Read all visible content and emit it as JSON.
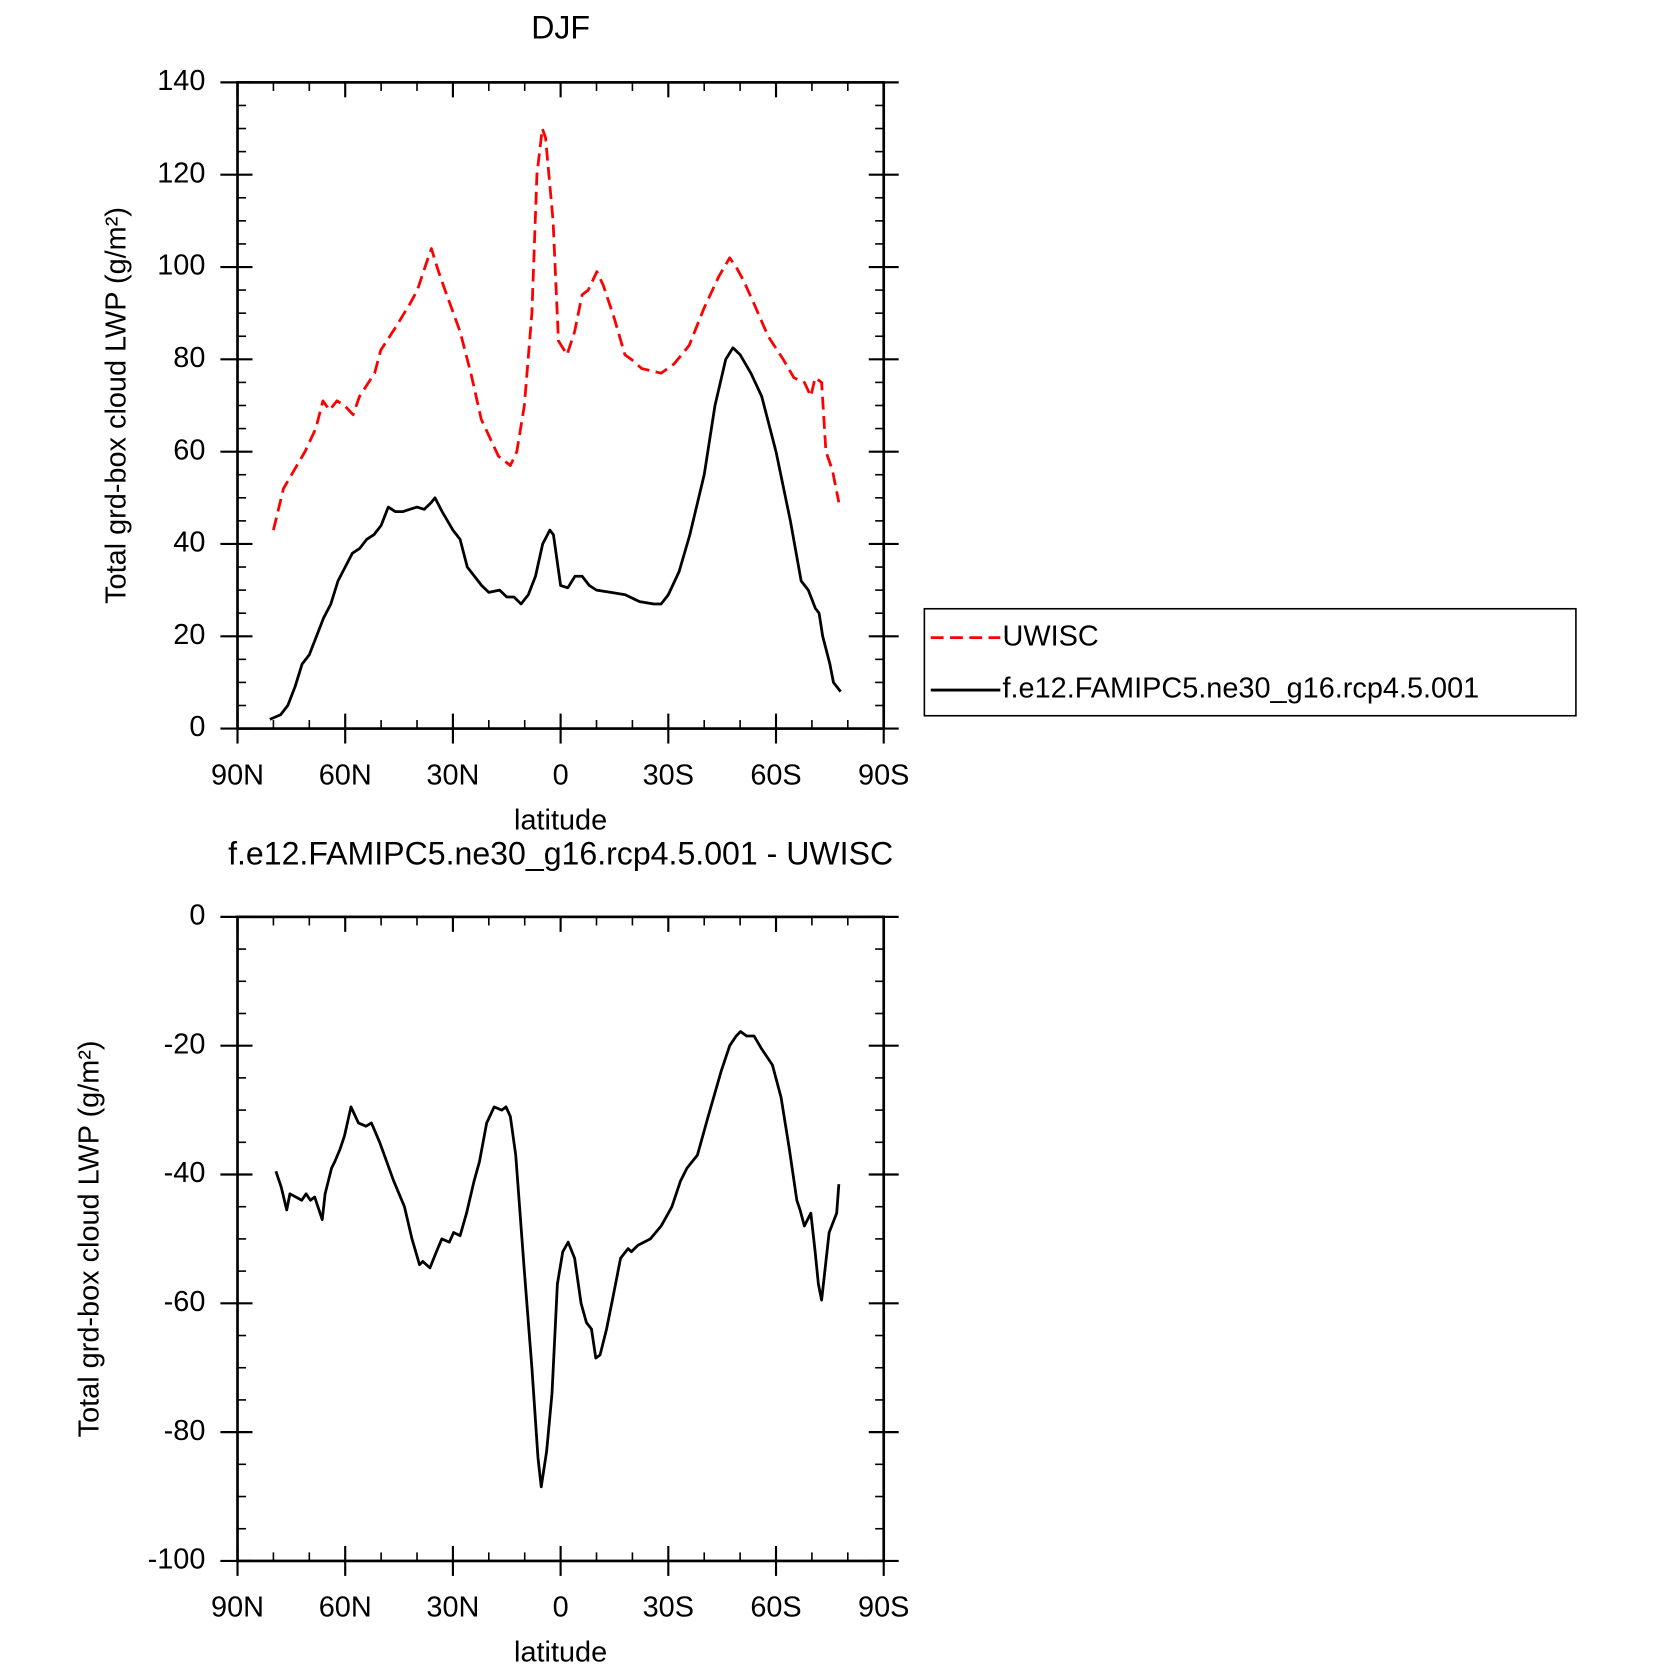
{
  "chart_data": [
    {
      "type": "line",
      "title": "DJF",
      "xlabel": "latitude",
      "ylabel": "Total grd-box cloud LWP (g/m²)",
      "xlim": [
        90,
        -90
      ],
      "xticks": [
        {
          "value": 90,
          "label": "90N"
        },
        {
          "value": 60,
          "label": "60N"
        },
        {
          "value": 30,
          "label": "30N"
        },
        0,
        {
          "value": -30,
          "label": "30S"
        },
        {
          "value": -60,
          "label": "60S"
        },
        {
          "value": -90,
          "label": "90S"
        }
      ],
      "xminorticks": [
        80,
        70,
        50,
        40,
        20,
        10,
        -10,
        -20,
        -40,
        -50,
        -70,
        -80
      ],
      "ylim": [
        0,
        140
      ],
      "yticks": [
        0,
        20,
        40,
        60,
        80,
        100,
        120,
        140
      ],
      "yminorticks": [
        5,
        10,
        15,
        25,
        30,
        35,
        45,
        50,
        55,
        65,
        70,
        75,
        85,
        90,
        95,
        105,
        110,
        115,
        125,
        130,
        135
      ],
      "legend": "right",
      "series": [
        {
          "name": "UWISC",
          "color": "#ff0000",
          "line_style": "dashed",
          "x": [
            80,
            77.2,
            74.2,
            71.2,
            68.2,
            66.2,
            64.4,
            62.3,
            60.2,
            57.8,
            56,
            51.8,
            50.1,
            45.9,
            42,
            39.9,
            36.9,
            36,
            34,
            32.2,
            28,
            25,
            22.1,
            19.1,
            17.3,
            14,
            12.2,
            10.1,
            8,
            6.6,
            5.1,
            4.2,
            2.1,
            0.6,
            -1.8,
            -3.9,
            -6,
            -7.7,
            -10.1,
            -11.9,
            -14.9,
            -17.9,
            -19.7,
            -22.6,
            -28,
            -31.6,
            -35.8,
            -39.9,
            -44.1,
            -47.1,
            -48.9,
            -51,
            -53.9,
            -57.8,
            -62,
            -65,
            -67.9,
            -69.7,
            -70.9,
            -72.7,
            -73.9,
            -75.7,
            -77.5
          ],
          "values": [
            43,
            52,
            56,
            60,
            65,
            71,
            69,
            71,
            70,
            68,
            72,
            77,
            82,
            87,
            92,
            95,
            102,
            104,
            99,
            95,
            86,
            77,
            67,
            62,
            59,
            57,
            60,
            70,
            90,
            120,
            130,
            128,
            110,
            84,
            81,
            86,
            94,
            95,
            99,
            96,
            89,
            81,
            80,
            78,
            77,
            79,
            83,
            91,
            98,
            102,
            100,
            97,
            92,
            85,
            80,
            76,
            75,
            72,
            76,
            75,
            60,
            56,
            49
          ]
        },
        {
          "name": "f.e12.FAMIPC5.ne30_g16.rcp4.5.001",
          "color": "#000000",
          "line_style": "solid",
          "x": [
            81,
            78,
            76,
            74,
            72,
            70,
            68,
            66,
            64,
            62,
            60,
            58,
            56,
            54,
            52,
            50,
            48,
            46,
            44,
            42,
            40,
            38,
            36,
            35,
            33,
            30,
            28,
            26,
            24,
            22,
            20,
            17,
            15,
            13,
            11,
            9,
            7,
            5,
            3,
            2,
            0,
            -2,
            -4,
            -6,
            -8,
            -10,
            -14,
            -18,
            -22,
            -26,
            -28,
            -30,
            -33,
            -36,
            -40,
            -43,
            -46,
            -48,
            -50,
            -53,
            -56,
            -60,
            -64,
            -67,
            -69,
            -71,
            -72,
            -73,
            -75,
            -76,
            -78
          ],
          "values": [
            2,
            3,
            5,
            9,
            14,
            16,
            20,
            24,
            27,
            32,
            35,
            38,
            39,
            41,
            42,
            44,
            48,
            47,
            47,
            47.5,
            48,
            47.5,
            49,
            50,
            47,
            43,
            41,
            35,
            33,
            31,
            29.5,
            30,
            28.5,
            28.5,
            27,
            29,
            33,
            40,
            43,
            42,
            31,
            30.5,
            33,
            33,
            31,
            30,
            29.5,
            29,
            27.5,
            27,
            27,
            29,
            34,
            42,
            55,
            70,
            80,
            82.5,
            81,
            77,
            72,
            60,
            45,
            32,
            30,
            26,
            25,
            20,
            14,
            10,
            8
          ]
        }
      ]
    },
    {
      "type": "line",
      "title": "f.e12.FAMIPC5.ne30_g16.rcp4.5.001 - UWISC",
      "xlabel": "latitude",
      "ylabel": "Total grd-box cloud LWP (g/m²)",
      "xlim": [
        90,
        -90
      ],
      "xticks": [
        {
          "value": 90,
          "label": "90N"
        },
        {
          "value": 60,
          "label": "60N"
        },
        {
          "value": 30,
          "label": "30N"
        },
        0,
        {
          "value": -30,
          "label": "30S"
        },
        {
          "value": -60,
          "label": "60S"
        },
        {
          "value": -90,
          "label": "90S"
        }
      ],
      "xminorticks": [
        80,
        70,
        50,
        40,
        20,
        10,
        -10,
        -20,
        -40,
        -50,
        -70,
        -80
      ],
      "ylim": [
        -100,
        0
      ],
      "yticks": [
        -100,
        -80,
        -60,
        -40,
        -20,
        0
      ],
      "yminorticks": [
        -5,
        -10,
        -15,
        -25,
        -30,
        -35,
        -45,
        -50,
        -55,
        -65,
        -70,
        -75,
        -85,
        -90,
        -95
      ],
      "series": [
        {
          "color": "#000000",
          "line_style": "solid",
          "x": [
            79.3,
            77.8,
            76.3,
            75.4,
            72.1,
            70.9,
            69.7,
            68.5,
            67.6,
            66.4,
            65.6,
            63.8,
            62.9,
            61.4,
            60.2,
            58.4,
            56.3,
            54.2,
            52.7,
            50.4,
            46.5,
            43.5,
            41.4,
            39.3,
            38.4,
            36.4,
            34.6,
            33.1,
            31,
            29.8,
            28,
            26.2,
            24.1,
            22.6,
            20.6,
            18.5,
            16.4,
            15.2,
            14,
            12.5,
            10.1,
            8,
            6.3,
            5.4,
            3.9,
            2.4,
            0.9,
            -0.6,
            -2.1,
            -3.9,
            -5.7,
            -7.2,
            -8.6,
            -9.8,
            -11,
            -12.8,
            -14.6,
            -16.7,
            -18.8,
            -19.7,
            -21.5,
            -25,
            -28,
            -31,
            -33.4,
            -35.2,
            -38.1,
            -41.1,
            -44.7,
            -47.1,
            -48.9,
            -50.1,
            -51.8,
            -53.9,
            -56,
            -59,
            -61.4,
            -63.7,
            -65.8,
            -66.7,
            -67.9,
            -69.7,
            -70.9,
            -71.8,
            -72.7,
            -74.8,
            -76.9,
            -77.5
          ],
          "values": [
            -39.5,
            -42,
            -45.5,
            -43,
            -44,
            -43,
            -44,
            -43.5,
            -45,
            -47,
            -43,
            -39,
            -38,
            -36,
            -34,
            -29.5,
            -32,
            -32.5,
            -32,
            -35,
            -41,
            -45,
            -50,
            -54,
            -53.5,
            -54.5,
            -52,
            -50,
            -50.5,
            -49,
            -49.5,
            -46,
            -41,
            -38,
            -32,
            -29.5,
            -30,
            -29.5,
            -31,
            -37,
            -55,
            -70,
            -84,
            -88.5,
            -83,
            -74,
            -57,
            -52,
            -50.5,
            -53,
            -60,
            -63,
            -64,
            -68.5,
            -68,
            -64,
            -59,
            -53,
            -51.5,
            -52,
            -51,
            -50,
            -48,
            -45,
            -41,
            -39,
            -37,
            -31,
            -24,
            -20,
            -18.5,
            -17.8,
            -18.5,
            -18.5,
            -20.5,
            -23,
            -28,
            -36,
            -44,
            -45.5,
            -48,
            -46,
            -52,
            -57,
            -59.5,
            -49,
            -46,
            -41.5
          ]
        }
      ]
    }
  ]
}
